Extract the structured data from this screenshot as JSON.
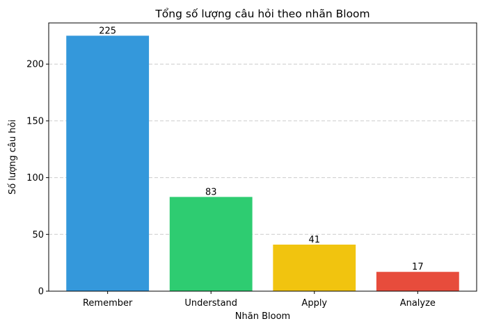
{
  "chart_data": {
    "type": "bar",
    "title": "Tổng số lượng câu hỏi theo nhãn Bloom",
    "xlabel": "Nhãn Bloom",
    "ylabel": "Số lượng câu hỏi",
    "categories": [
      "Remember",
      "Understand",
      "Apply",
      "Analyze"
    ],
    "values": [
      225,
      83,
      41,
      17
    ],
    "colors": [
      "#3498db",
      "#2ecc71",
      "#f1c40f",
      "#e74c3c"
    ],
    "ylim": [
      0,
      236.25
    ],
    "yticks": [
      0,
      50,
      100,
      150,
      200
    ],
    "grid": {
      "y": true,
      "style": "dashed"
    },
    "data_labels": true
  }
}
